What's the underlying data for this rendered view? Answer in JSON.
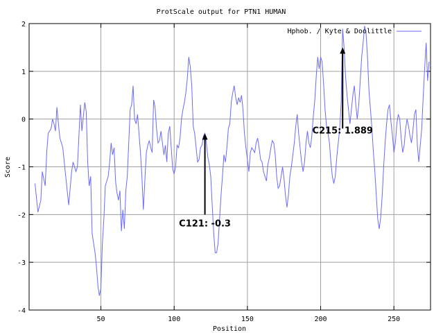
{
  "chart_data": {
    "type": "line",
    "title": "ProtScale output for PTN1 HUMAN",
    "xlabel": "Position",
    "ylabel": "Score",
    "xlim": [
      1,
      275
    ],
    "ylim": [
      -4,
      2
    ],
    "xticks": [
      50,
      100,
      150,
      200,
      250
    ],
    "yticks": [
      -4,
      -3,
      -2,
      -1,
      0,
      1,
      2
    ],
    "grid": true,
    "legend_position": "top-right",
    "series": [
      {
        "name": "Hphob. / Kyte & Doolittle",
        "color": "#6a6aff",
        "points": [
          [
            5,
            -1.35
          ],
          [
            7,
            -1.95
          ],
          [
            9,
            -1.7
          ],
          [
            10,
            -1.1
          ],
          [
            12,
            -1.4
          ],
          [
            13,
            -0.7
          ],
          [
            14,
            -0.3
          ],
          [
            16,
            -0.2
          ],
          [
            17,
            0.0
          ],
          [
            18,
            -0.1
          ],
          [
            19,
            -0.25
          ],
          [
            20,
            0.25
          ],
          [
            21,
            -0.1
          ],
          [
            22,
            -0.4
          ],
          [
            24,
            -0.6
          ],
          [
            26,
            -1.2
          ],
          [
            28,
            -1.8
          ],
          [
            30,
            -1.1
          ],
          [
            31,
            -0.9
          ],
          [
            33,
            -1.1
          ],
          [
            34,
            -1.0
          ],
          [
            36,
            0.3
          ],
          [
            37,
            -0.25
          ],
          [
            39,
            0.35
          ],
          [
            40,
            0.15
          ],
          [
            41,
            -0.9
          ],
          [
            42,
            -1.4
          ],
          [
            43,
            -1.2
          ],
          [
            44,
            -2.4
          ],
          [
            46,
            -2.8
          ],
          [
            47,
            -3.1
          ],
          [
            48,
            -3.5
          ],
          [
            49,
            -3.7
          ],
          [
            50,
            -3.55
          ],
          [
            51,
            -2.6
          ],
          [
            52,
            -2.1
          ],
          [
            53,
            -1.4
          ],
          [
            55,
            -1.2
          ],
          [
            56,
            -0.9
          ],
          [
            57,
            -0.5
          ],
          [
            58,
            -0.75
          ],
          [
            59,
            -0.6
          ],
          [
            60,
            -1.3
          ],
          [
            61,
            -1.55
          ],
          [
            62,
            -1.7
          ],
          [
            63,
            -1.5
          ],
          [
            64,
            -2.35
          ],
          [
            65,
            -1.9
          ],
          [
            66,
            -2.3
          ],
          [
            67,
            -1.5
          ],
          [
            68,
            -1.2
          ],
          [
            69,
            -0.5
          ],
          [
            70,
            0.2
          ],
          [
            71,
            0.3
          ],
          [
            72,
            0.7
          ],
          [
            73,
            0.0
          ],
          [
            74,
            -0.1
          ],
          [
            75,
            0.1
          ],
          [
            76,
            -0.3
          ],
          [
            77,
            -0.7
          ],
          [
            78,
            -1.2
          ],
          [
            79,
            -1.9
          ],
          [
            80,
            -1.3
          ],
          [
            81,
            -0.7
          ],
          [
            82,
            -0.55
          ],
          [
            83,
            -0.45
          ],
          [
            84,
            -0.6
          ],
          [
            85,
            -0.7
          ],
          [
            86,
            0.4
          ],
          [
            87,
            0.25
          ],
          [
            88,
            -0.2
          ],
          [
            89,
            -0.5
          ],
          [
            90,
            -0.45
          ],
          [
            91,
            -0.25
          ],
          [
            92,
            -0.5
          ],
          [
            93,
            -0.75
          ],
          [
            94,
            -0.55
          ],
          [
            95,
            -0.9
          ],
          [
            96,
            -0.3
          ],
          [
            97,
            -0.15
          ],
          [
            98,
            -0.6
          ],
          [
            99,
            -1.05
          ],
          [
            100,
            -1.15
          ],
          [
            101,
            -1.0
          ],
          [
            102,
            -0.55
          ],
          [
            103,
            -0.6
          ],
          [
            104,
            -0.4
          ],
          [
            105,
            0.0
          ],
          [
            106,
            0.2
          ],
          [
            107,
            0.35
          ],
          [
            108,
            0.55
          ],
          [
            109,
            0.85
          ],
          [
            110,
            1.3
          ],
          [
            111,
            1.1
          ],
          [
            112,
            0.7
          ],
          [
            113,
            -0.15
          ],
          [
            114,
            -0.3
          ],
          [
            115,
            -0.6
          ],
          [
            116,
            -0.9
          ],
          [
            117,
            -0.85
          ],
          [
            118,
            -0.6
          ],
          [
            119,
            -0.55
          ],
          [
            120,
            -0.35
          ],
          [
            121,
            -0.3
          ],
          [
            122,
            -0.5
          ],
          [
            123,
            -0.8
          ],
          [
            124,
            -0.95
          ],
          [
            125,
            -1.2
          ],
          [
            126,
            -1.8
          ],
          [
            127,
            -2.4
          ],
          [
            128,
            -2.8
          ],
          [
            129,
            -2.8
          ],
          [
            130,
            -2.6
          ],
          [
            131,
            -2.1
          ],
          [
            132,
            -1.6
          ],
          [
            133,
            -1.2
          ],
          [
            134,
            -0.75
          ],
          [
            135,
            -0.9
          ],
          [
            136,
            -0.6
          ],
          [
            137,
            -0.2
          ],
          [
            138,
            -0.1
          ],
          [
            139,
            0.35
          ],
          [
            140,
            0.55
          ],
          [
            141,
            0.7
          ],
          [
            142,
            0.45
          ],
          [
            143,
            0.3
          ],
          [
            144,
            0.45
          ],
          [
            145,
            0.35
          ],
          [
            146,
            0.5
          ],
          [
            147,
            0.2
          ],
          [
            148,
            -0.3
          ],
          [
            149,
            -0.6
          ],
          [
            150,
            -0.85
          ],
          [
            151,
            -1.1
          ],
          [
            152,
            -0.7
          ],
          [
            153,
            -0.6
          ],
          [
            154,
            -0.65
          ],
          [
            155,
            -0.7
          ],
          [
            156,
            -0.5
          ],
          [
            157,
            -0.4
          ],
          [
            158,
            -0.6
          ],
          [
            159,
            -0.85
          ],
          [
            160,
            -0.9
          ],
          [
            161,
            -1.1
          ],
          [
            162,
            -1.2
          ],
          [
            163,
            -1.3
          ],
          [
            164,
            -0.95
          ],
          [
            165,
            -0.8
          ],
          [
            166,
            -0.6
          ],
          [
            167,
            -0.45
          ],
          [
            168,
            -0.5
          ],
          [
            169,
            -0.75
          ],
          [
            170,
            -1.2
          ],
          [
            171,
            -1.45
          ],
          [
            172,
            -1.4
          ],
          [
            173,
            -1.2
          ],
          [
            174,
            -1.0
          ],
          [
            175,
            -1.25
          ],
          [
            176,
            -1.6
          ],
          [
            177,
            -1.85
          ],
          [
            178,
            -1.6
          ],
          [
            179,
            -1.2
          ],
          [
            180,
            -1.0
          ],
          [
            181,
            -0.75
          ],
          [
            182,
            -0.5
          ],
          [
            183,
            -0.15
          ],
          [
            184,
            0.1
          ],
          [
            185,
            -0.3
          ],
          [
            186,
            -0.6
          ],
          [
            187,
            -0.9
          ],
          [
            188,
            -1.1
          ],
          [
            189,
            -0.9
          ],
          [
            190,
            -0.5
          ],
          [
            191,
            -0.25
          ],
          [
            192,
            -0.5
          ],
          [
            193,
            -0.6
          ],
          [
            194,
            -0.35
          ],
          [
            195,
            0.05
          ],
          [
            196,
            0.4
          ],
          [
            197,
            0.9
          ],
          [
            198,
            1.3
          ],
          [
            199,
            1.05
          ],
          [
            200,
            1.3
          ],
          [
            201,
            1.2
          ],
          [
            202,
            0.75
          ],
          [
            203,
            0.2
          ],
          [
            204,
            -0.15
          ],
          [
            205,
            -0.3
          ],
          [
            206,
            -0.5
          ],
          [
            207,
            -0.9
          ],
          [
            208,
            -1.2
          ],
          [
            209,
            -1.35
          ],
          [
            210,
            -1.2
          ],
          [
            211,
            -0.8
          ],
          [
            212,
            -0.5
          ],
          [
            213,
            -0.2
          ],
          [
            214,
            0.35
          ],
          [
            215,
            1.889
          ],
          [
            216,
            1.5
          ],
          [
            217,
            0.9
          ],
          [
            218,
            0.5
          ],
          [
            219,
            0.2
          ],
          [
            220,
            -0.1
          ],
          [
            221,
            0.2
          ],
          [
            222,
            0.5
          ],
          [
            223,
            0.7
          ],
          [
            224,
            0.3
          ],
          [
            225,
            0.0
          ],
          [
            226,
            0.3
          ],
          [
            227,
            0.8
          ],
          [
            228,
            1.3
          ],
          [
            229,
            1.6
          ],
          [
            230,
            1.95
          ],
          [
            231,
            1.8
          ],
          [
            232,
            1.3
          ],
          [
            233,
            0.6
          ],
          [
            234,
            0.2
          ],
          [
            235,
            -0.2
          ],
          [
            236,
            -0.7
          ],
          [
            237,
            -1.1
          ],
          [
            238,
            -1.6
          ],
          [
            239,
            -2.1
          ],
          [
            240,
            -2.3
          ],
          [
            241,
            -2.05
          ],
          [
            242,
            -1.6
          ],
          [
            243,
            -1.0
          ],
          [
            244,
            -0.5
          ],
          [
            245,
            -0.1
          ],
          [
            246,
            0.2
          ],
          [
            247,
            0.3
          ],
          [
            248,
            -0.05
          ],
          [
            249,
            -0.35
          ],
          [
            250,
            -0.7
          ],
          [
            251,
            -0.5
          ],
          [
            252,
            -0.1
          ],
          [
            253,
            0.1
          ],
          [
            254,
            0.0
          ],
          [
            255,
            -0.4
          ],
          [
            256,
            -0.7
          ],
          [
            257,
            -0.55
          ],
          [
            258,
            -0.2
          ],
          [
            259,
            0.0
          ],
          [
            260,
            -0.15
          ],
          [
            261,
            -0.35
          ],
          [
            262,
            -0.5
          ],
          [
            263,
            -0.25
          ],
          [
            264,
            0.1
          ],
          [
            265,
            0.2
          ],
          [
            266,
            -0.55
          ],
          [
            267,
            -0.9
          ],
          [
            268,
            -0.55
          ],
          [
            269,
            -0.2
          ],
          [
            270,
            0.45
          ],
          [
            271,
            1.05
          ],
          [
            272,
            1.6
          ],
          [
            273,
            0.8
          ],
          [
            274,
            1.2
          ]
        ]
      }
    ],
    "annotations": [
      {
        "text": "C121: -0.3",
        "x": 121,
        "y": -0.3,
        "arrow_from_y": -2.0
      },
      {
        "text": "C215: 1.889",
        "x": 215,
        "y": 1.5,
        "arrow_from_y": -0.2
      }
    ]
  }
}
